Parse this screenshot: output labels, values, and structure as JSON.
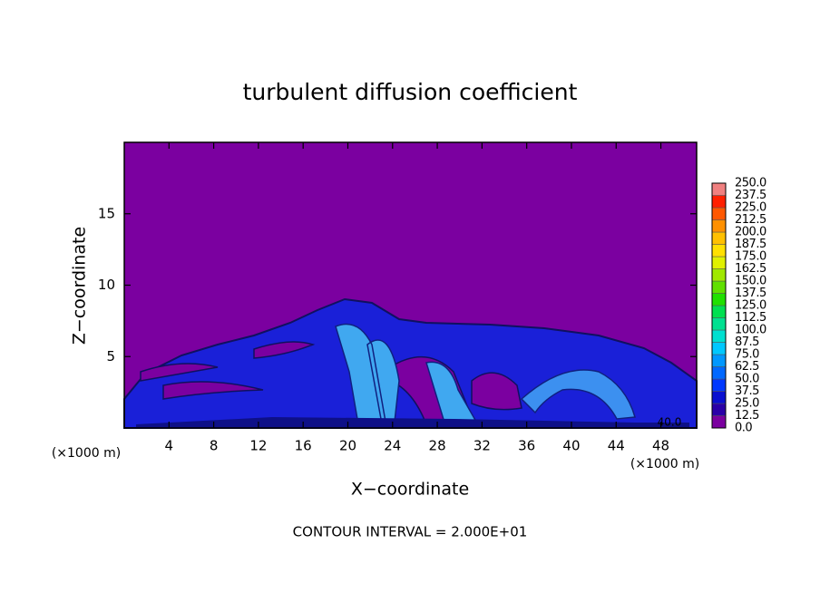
{
  "chart_data": {
    "type": "contour",
    "title": "turbulent diffusion coefficient",
    "xlabel": "X−coordinate",
    "ylabel": "Z−coordinate",
    "x_unit": "(×1000 m)",
    "y_unit": "(×1000 m)",
    "xlim": [
      0,
      51.2
    ],
    "ylim": [
      0,
      20
    ],
    "xticks": [
      4,
      8,
      12,
      16,
      20,
      24,
      28,
      32,
      36,
      40,
      44,
      48
    ],
    "yticks": [
      5,
      10,
      15
    ],
    "contour_label": "40.0",
    "footer": "CONTOUR INTERVAL = 2.000E+01",
    "colorbar": {
      "levels": [
        {
          "value": 0,
          "label": "0.0"
        },
        12.5,
        {
          "value": 25,
          "label": "25.0"
        },
        37.5,
        {
          "value": 50,
          "label": "50.0"
        },
        62.5,
        {
          "value": 75,
          "label": "75.0"
        },
        87.5,
        {
          "value": 100,
          "label": "100.0"
        },
        112.5,
        {
          "value": 125,
          "label": "125.0"
        },
        137.5,
        {
          "value": 150,
          "label": "150.0"
        },
        162.5,
        {
          "value": 175,
          "label": "175.0"
        },
        187.5,
        {
          "value": 200,
          "label": "200.0"
        },
        212.5,
        {
          "value": 225,
          "label": "225.0"
        },
        237.5,
        {
          "value": 250,
          "label": "250.0"
        }
      ],
      "colors": [
        "#7b00a0",
        "#2a00a8",
        "#0a10d0",
        "#0038ff",
        "#0068ff",
        "#0098ff",
        "#00c8ff",
        "#00e0d0",
        "#00e090",
        "#00e050",
        "#20e000",
        "#60e000",
        "#a0e800",
        "#e0f000",
        "#ffe000",
        "#ffc000",
        "#ff9000",
        "#ff5800",
        "#ff2000",
        "#f08080"
      ]
    }
  }
}
